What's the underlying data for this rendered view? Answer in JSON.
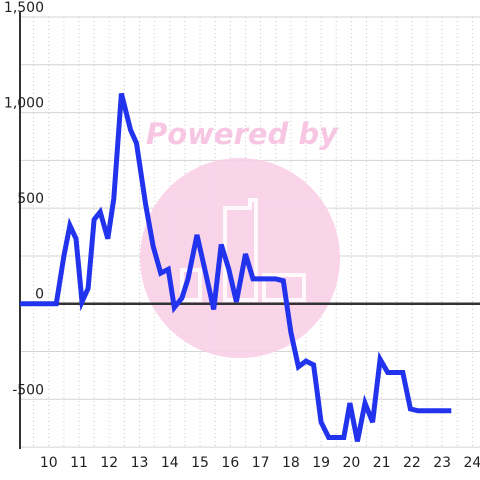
{
  "chart_data": {
    "type": "line",
    "title": "",
    "xlabel": "",
    "ylabel": "",
    "xlim": [
      9.05,
      24.25
    ],
    "ylim": [
      -760,
      1500
    ],
    "x_ticks": [
      10,
      11,
      12,
      13,
      14,
      15,
      16,
      17,
      18,
      19,
      20,
      21,
      22,
      23,
      24
    ],
    "x_tick_labels": [
      "10",
      "11",
      "12",
      "13",
      "14",
      "15",
      "16",
      "17",
      "18",
      "19",
      "20",
      "21",
      "22",
      "23",
      "24"
    ],
    "y_ticks": [
      -500,
      0,
      500,
      1000,
      1500
    ],
    "y_tick_labels": [
      "-500",
      "0",
      "500",
      "1,000",
      "1,500"
    ],
    "grid": {
      "x": true,
      "y": true
    },
    "legend": "none",
    "series": [
      {
        "color": "#2233ee",
        "x": [
          9.05,
          10.25,
          10.5,
          10.7,
          10.9,
          11.1,
          11.3,
          11.5,
          11.7,
          11.95,
          12.15,
          12.4,
          12.7,
          12.9,
          13.2,
          13.45,
          13.7,
          13.95,
          14.15,
          14.4,
          14.6,
          14.9,
          15.2,
          15.45,
          15.7,
          15.95,
          16.2,
          16.5,
          16.75,
          17.0,
          17.25,
          17.5,
          17.75,
          18.0,
          18.25,
          18.5,
          18.75,
          19.0,
          19.25,
          19.5,
          19.75,
          19.95,
          20.2,
          20.45,
          20.7,
          20.95,
          21.2,
          21.45,
          21.7,
          21.95,
          22.2,
          22.5,
          22.8,
          23.3
        ],
        "y": [
          0,
          0,
          250,
          410,
          340,
          10,
          80,
          440,
          480,
          340,
          550,
          1100,
          910,
          840,
          520,
          300,
          160,
          180,
          -20,
          30,
          130,
          360,
          150,
          -30,
          310,
          180,
          10,
          260,
          130,
          130,
          130,
          130,
          120,
          -150,
          -330,
          -300,
          -320,
          -620,
          -700,
          -700,
          -700,
          -520,
          -720,
          -520,
          -620,
          -290,
          -360,
          -360,
          -360,
          -550,
          -560,
          -560,
          -560,
          -560
        ]
      }
    ]
  },
  "watermark": {
    "text": "Powered by"
  }
}
